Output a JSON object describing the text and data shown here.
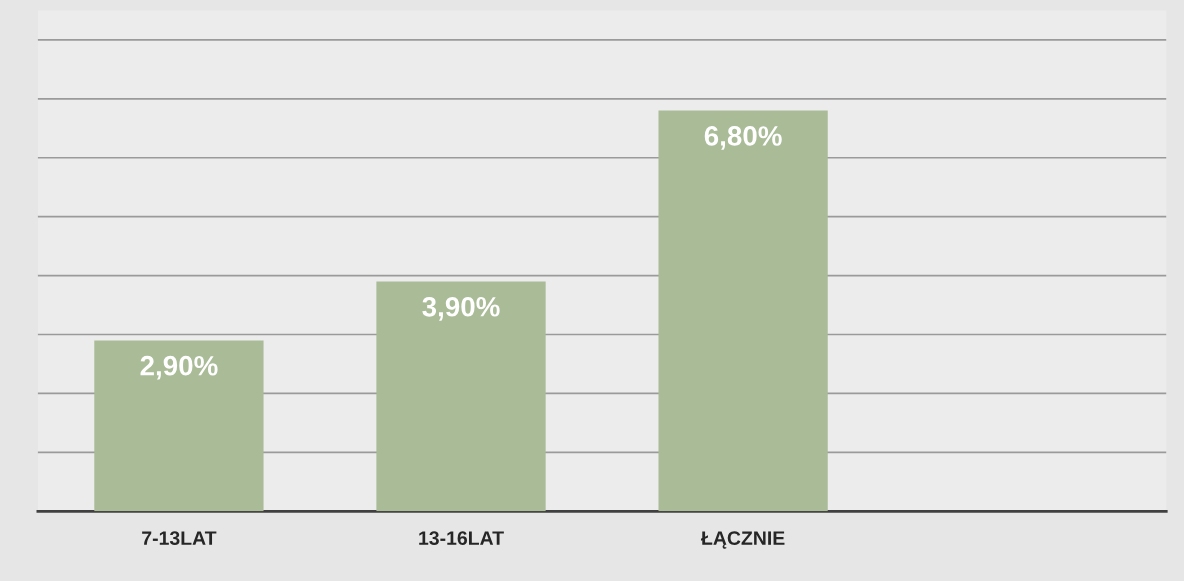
{
  "chart_data": {
    "type": "bar",
    "categories": [
      "7-13LAT",
      "13-16LAT",
      "ŁĄCZNIE",
      null
    ],
    "values": [
      2.9,
      3.9,
      6.8,
      null
    ],
    "value_labels": [
      "2,90%",
      "3,90%",
      "6,80%",
      null
    ],
    "color": "#a9bb97",
    "ylim": [
      0,
      8.5
    ],
    "yticks": [
      {
        "value": 0,
        "label": null
      },
      {
        "value": 1,
        "label": null
      },
      {
        "value": 2,
        "label": null
      },
      {
        "value": 3,
        "label": null
      },
      {
        "value": 4,
        "label": null
      },
      {
        "value": 5,
        "label": null
      },
      {
        "value": 6,
        "label": null
      },
      {
        "value": 7,
        "label": null
      },
      {
        "value": 8,
        "label": null
      }
    ],
    "tick_labels": "x",
    "grid": "y"
  }
}
